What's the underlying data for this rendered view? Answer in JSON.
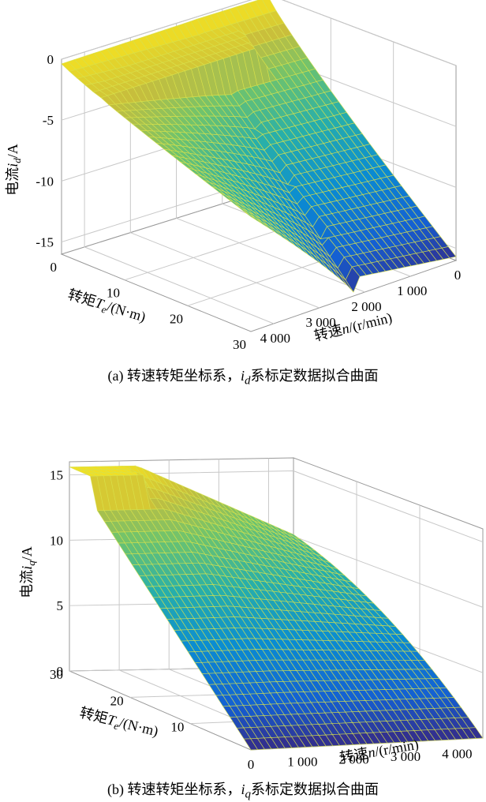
{
  "chart_data": [
    {
      "type": "surface",
      "caption": "(a) 转速转矩坐标系，id系标定数据拟合曲面",
      "zlabel": "电流id/A",
      "xlabel": "转速n/(r/min)",
      "ylabel": "转矩Te/(N·m)",
      "zticks": [
        "0",
        "-5",
        "-10",
        "-15"
      ],
      "xticks": [
        "0",
        "1 000",
        "2 000",
        "3 000",
        "4 000"
      ],
      "yticks": [
        "0",
        "10",
        "20",
        "30"
      ],
      "speed_range": [
        0,
        4500
      ],
      "torque_range": [
        0,
        30
      ],
      "current_range": [
        -16,
        0
      ],
      "grid": true,
      "colormap": "parula"
    },
    {
      "type": "surface",
      "caption": "(b) 转速转矩坐标系，iq系标定数据拟合曲面",
      "zlabel": "电流iq/A",
      "xlabel": "转速n/(r/min)",
      "ylabel": "转矩Te/(N·m)",
      "zticks": [
        "15",
        "10",
        "5",
        "0"
      ],
      "xticks": [
        "0",
        "1 000",
        "2 000",
        "3 000",
        "4 000"
      ],
      "yticks": [
        "30",
        "20",
        "10"
      ],
      "speed_range": [
        0,
        4500
      ],
      "torque_range": [
        0,
        30
      ],
      "current_range": [
        0,
        16
      ],
      "grid": true,
      "colormap": "parula"
    }
  ],
  "captions": {
    "a_prefix": "(a) 转速转矩坐标系，",
    "a_sym": "i",
    "a_sub": "d",
    "a_suffix": "系标定数据拟合曲面",
    "b_prefix": "(b) 转速转矩坐标系，",
    "b_sym": "i",
    "b_sub": "q",
    "b_suffix": "系标定数据拟合曲面"
  },
  "labels": {
    "a_z": "电流",
    "a_z_sym": "i",
    "a_z_sub": "d",
    "a_z_unit": "/A",
    "b_z": "电流",
    "b_z_sym": "i",
    "b_z_sub": "q",
    "b_z_unit": "/A",
    "torque": "转矩",
    "torque_sym": "T",
    "torque_sub": "e",
    "torque_unit": "/(N·m)",
    "speed": "转速",
    "speed_sym": "n",
    "speed_unit": "/(r/min)"
  }
}
